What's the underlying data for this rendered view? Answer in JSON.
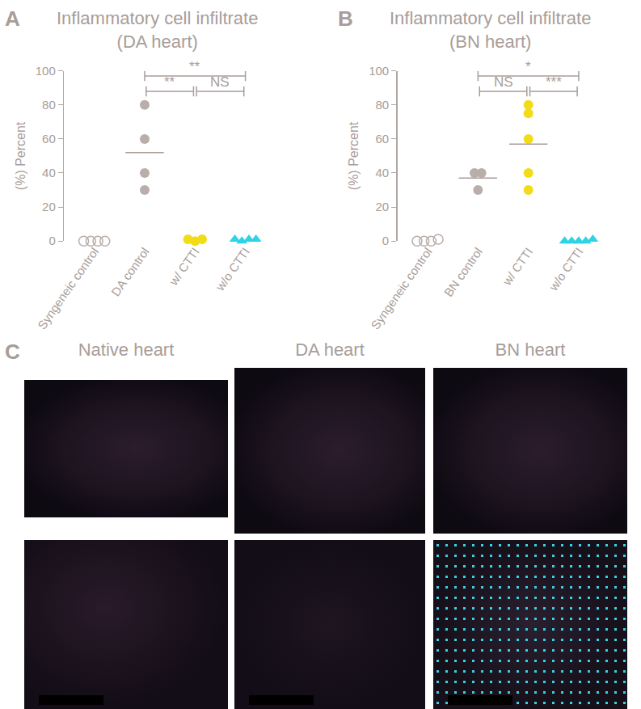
{
  "chart_data": [
    {
      "panel": "A",
      "type": "scatter",
      "title": [
        "Inflammatory cell infiltrate",
        "(DA heart)"
      ],
      "y_label": "(%) Percent",
      "categories": [
        "Syngeneic control",
        "DA control",
        "w/ CTTI",
        "w/o CTTI"
      ],
      "groups": [
        {
          "values": [
            0,
            0,
            0,
            0
          ],
          "color": "#b9aeaa",
          "marker": "circle-open"
        },
        {
          "values": [
            80,
            60,
            40,
            30
          ],
          "color": "#b9aeaa",
          "marker": "circle",
          "mean": 52
        },
        {
          "values": [
            1,
            0,
            1
          ],
          "color": "#f2dc17",
          "marker": "circle"
        },
        {
          "values": [
            1,
            0,
            1,
            1
          ],
          "color": "#2fd3e6",
          "marker": "triangle-up"
        }
      ],
      "comparisons": [
        {
          "pair": [
            1,
            3
          ],
          "label": "**"
        },
        {
          "pair": [
            1,
            2
          ],
          "label": "**"
        },
        {
          "pair": [
            2,
            3
          ],
          "label": "NS"
        }
      ],
      "ylim": [
        0,
        100
      ],
      "yticks": [
        0,
        20,
        40,
        60,
        80,
        100
      ]
    },
    {
      "panel": "B",
      "type": "scatter",
      "title": [
        "Inflammatory cell infiltrate",
        "(BN heart)"
      ],
      "y_label": "(%) Percent",
      "categories": [
        "Syngeneic control",
        "BN control",
        "w/ CTTI",
        "w/o CTTI"
      ],
      "groups": [
        {
          "values": [
            0,
            0,
            0,
            1
          ],
          "color": "#b9aeaa",
          "marker": "circle-open"
        },
        {
          "values": [
            40,
            40,
            30
          ],
          "color": "#b9aeaa",
          "marker": "circle",
          "mean": 37
        },
        {
          "values": [
            80,
            75,
            60,
            40,
            30
          ],
          "color": "#f2dc17",
          "marker": "circle",
          "mean": 57
        },
        {
          "values": [
            0,
            0,
            0,
            0,
            1
          ],
          "color": "#2fd3e6",
          "marker": "triangle-up"
        }
      ],
      "comparisons": [
        {
          "pair": [
            1,
            3
          ],
          "label": "*"
        },
        {
          "pair": [
            1,
            2
          ],
          "label": "NS"
        },
        {
          "pair": [
            2,
            3
          ],
          "label": "***"
        }
      ],
      "ylim": [
        0,
        100
      ],
      "yticks": [
        0,
        20,
        40,
        60,
        80,
        100
      ]
    }
  ],
  "images": {
    "panel": "C",
    "labels": [
      "Native heart",
      "DA heart",
      "BN heart"
    ]
  }
}
